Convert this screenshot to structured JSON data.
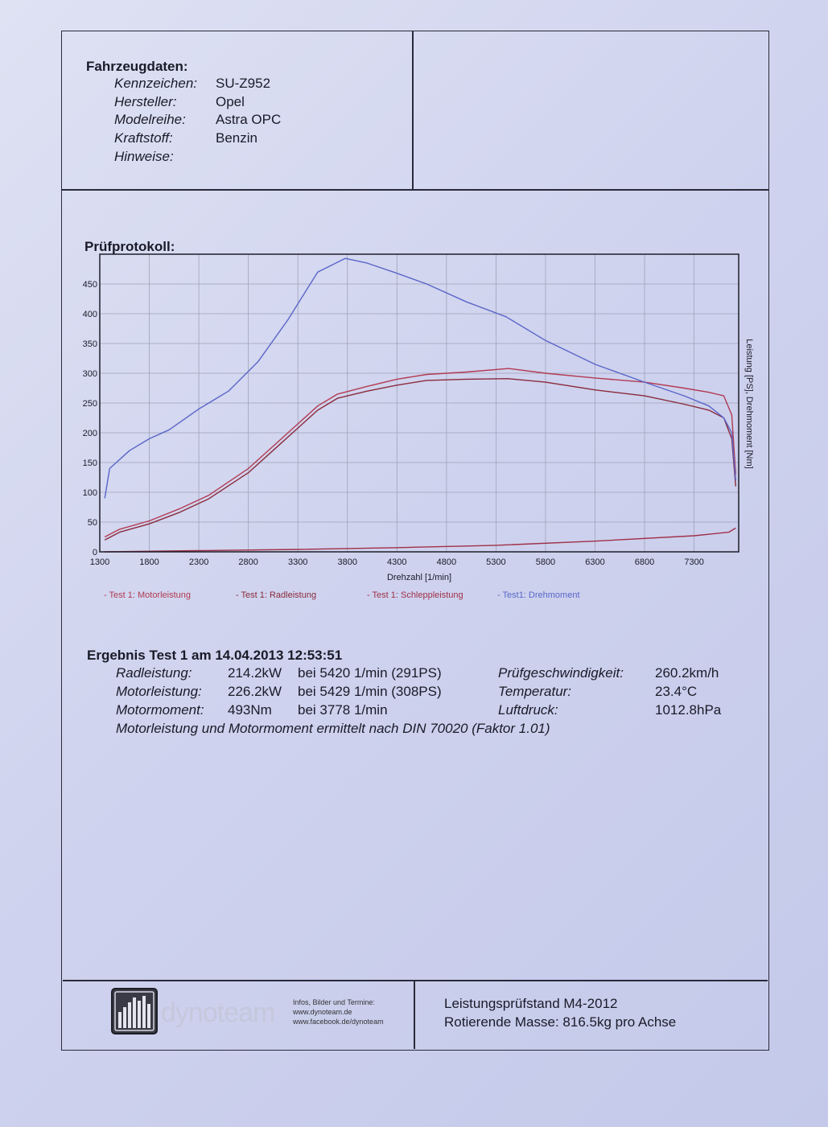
{
  "vehicle": {
    "heading": "Fahrzeugdaten:",
    "rows": [
      {
        "label": "Kennzeichen:",
        "value": "SU-Z952"
      },
      {
        "label": "Hersteller:",
        "value": "Opel"
      },
      {
        "label": "Modelreihe:",
        "value": "Astra OPC"
      },
      {
        "label": "Kraftstoff:",
        "value": "Benzin"
      },
      {
        "label": "Hinweise:",
        "value": ""
      }
    ]
  },
  "protocol": {
    "heading": "Prüfprotokoll:"
  },
  "chart_data": {
    "type": "line",
    "xlabel": "Drehzahl [1/min]",
    "ylabel": "Leistung [PS], Drehmoment [Nm]",
    "xlim": [
      1300,
      7750
    ],
    "ylim": [
      0,
      500
    ],
    "xticks": [
      1300,
      1800,
      2300,
      2800,
      3300,
      3800,
      4300,
      4800,
      5300,
      5800,
      6300,
      6800,
      7300
    ],
    "yticks": [
      0,
      50,
      100,
      150,
      200,
      250,
      300,
      350,
      400,
      450
    ],
    "grid": true,
    "legend_position": "bottom",
    "series": [
      {
        "name": "- Test 1: Motorleistung",
        "color": "#b23a52",
        "x": [
          1350,
          1500,
          1800,
          2100,
          2400,
          2800,
          3100,
          3300,
          3500,
          3700,
          4000,
          4300,
          4600,
          5000,
          5429,
          5800,
          6300,
          6800,
          7200,
          7450,
          7600,
          7680,
          7720
        ],
        "y": [
          25,
          38,
          52,
          72,
          95,
          140,
          185,
          215,
          245,
          265,
          278,
          290,
          298,
          302,
          308,
          300,
          292,
          285,
          275,
          268,
          262,
          230,
          130
        ]
      },
      {
        "name": "- Test 1: Radleistung",
        "color": "#8a2a3c",
        "x": [
          1350,
          1500,
          1800,
          2100,
          2400,
          2800,
          3100,
          3300,
          3500,
          3700,
          4000,
          4300,
          4600,
          5000,
          5420,
          5800,
          6300,
          6800,
          7200,
          7450,
          7600,
          7680,
          7720
        ],
        "y": [
          20,
          33,
          47,
          66,
          89,
          133,
          178,
          208,
          238,
          258,
          270,
          280,
          288,
          290,
          291,
          285,
          272,
          262,
          248,
          238,
          225,
          190,
          110
        ]
      },
      {
        "name": "- Test 1: Schleppleistung",
        "color": "#a03048",
        "x": [
          1350,
          2300,
          3300,
          4300,
          5300,
          6300,
          7300,
          7650,
          7720
        ],
        "y": [
          0,
          2,
          4,
          7,
          11,
          18,
          27,
          33,
          40
        ]
      },
      {
        "name": "- Test1: Drehmoment",
        "color": "#5a66c8",
        "x": [
          1350,
          1400,
          1600,
          1800,
          2000,
          2300,
          2600,
          2900,
          3200,
          3500,
          3778,
          4000,
          4300,
          4600,
          5000,
          5400,
          5800,
          6300,
          6800,
          7200,
          7450,
          7600,
          7680,
          7720
        ],
        "y": [
          90,
          140,
          170,
          190,
          205,
          240,
          270,
          320,
          390,
          470,
          493,
          485,
          468,
          450,
          420,
          395,
          355,
          315,
          285,
          262,
          245,
          225,
          200,
          120
        ]
      }
    ]
  },
  "result": {
    "heading": "Ergebnis Test 1 am 14.04.2013 12:53:51",
    "rows": [
      {
        "label": "Radleistung:",
        "value": "214.2kW",
        "detail": "bei 5420 1/min (291PS)",
        "label2": "Prüfgeschwindigkeit:",
        "value2": "260.2km/h"
      },
      {
        "label": "Motorleistung:",
        "value": "226.2kW",
        "detail": "bei 5429 1/min (308PS)",
        "label2": "Temperatur:",
        "value2": "23.4°C"
      },
      {
        "label": "Motormoment:",
        "value": "493Nm",
        "detail": "bei 3778 1/min",
        "label2": "Luftdruck:",
        "value2": "1012.8hPa"
      }
    ],
    "note": "Motorleistung und Motormoment ermittelt nach DIN 70020 (Faktor 1.01)"
  },
  "footer": {
    "brand": "dynoteam",
    "info_lines": [
      "Infos, Bilder und Termine:",
      "www.dynoteam.de",
      "www.facebook.de/dynoteam"
    ],
    "stand": "Leistungsprüfstand M4-2012",
    "mass": "Rotierende Masse: 816.5kg pro Achse"
  }
}
